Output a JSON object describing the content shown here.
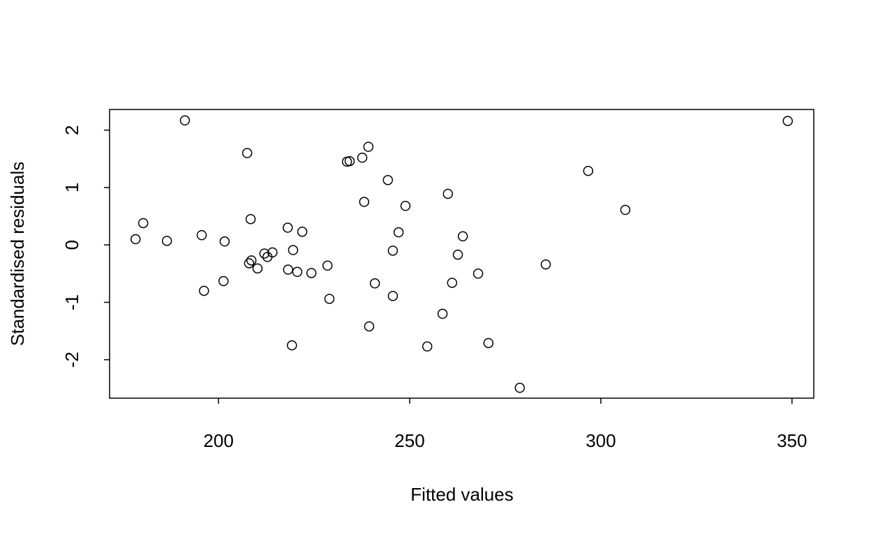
{
  "chart_data": {
    "type": "scatter",
    "xlabel": "Fitted values",
    "ylabel": "Standardised residuals",
    "x": [
      191.2,
      348.9,
      207.5,
      239.2,
      237.6,
      233.6,
      234.3,
      296.7,
      244.3,
      260.0,
      238.1,
      248.9,
      306.4,
      208.4,
      180.3,
      218.1,
      221.9,
      247.1,
      195.6,
      263.9,
      178.3,
      186.5,
      201.6,
      219.5,
      245.6,
      214.1,
      212.0,
      262.6,
      212.8,
      208.6,
      208.0,
      228.5,
      285.6,
      210.2,
      218.2,
      220.6,
      224.3,
      267.9,
      201.3,
      240.9,
      261.1,
      196.2,
      245.6,
      229.0,
      258.6,
      239.4,
      219.2,
      254.6,
      270.6,
      278.8
    ],
    "values": [
      2.17,
      2.16,
      1.6,
      1.71,
      1.52,
      1.45,
      1.46,
      1.29,
      1.13,
      0.89,
      0.75,
      0.68,
      0.61,
      0.45,
      0.38,
      0.3,
      0.23,
      0.22,
      0.17,
      0.15,
      0.1,
      0.07,
      0.06,
      -0.09,
      -0.1,
      -0.13,
      -0.15,
      -0.17,
      -0.21,
      -0.27,
      -0.32,
      -0.36,
      -0.34,
      -0.41,
      -0.43,
      -0.47,
      -0.49,
      -0.5,
      -0.63,
      -0.67,
      -0.66,
      -0.8,
      -0.89,
      -0.94,
      -1.2,
      -1.42,
      -1.75,
      -1.77,
      -1.71,
      -2.49
    ],
    "color": "#000000",
    "xlim": [
      171.5,
      355.7
    ],
    "xticks": [
      200,
      250,
      300,
      350
    ],
    "ylim": [
      -2.67,
      2.36
    ],
    "yticks": [
      -2,
      -1,
      0,
      1,
      2
    ]
  }
}
